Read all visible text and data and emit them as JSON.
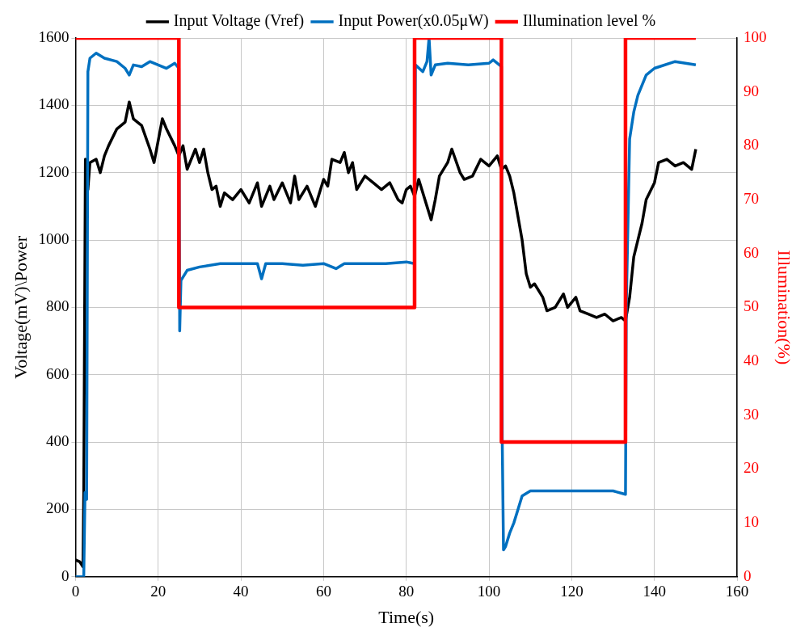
{
  "chart_data": {
    "type": "line",
    "xlabel": "Time(s)",
    "ylabel": "Voltage(mV)\\Power",
    "y2label": "Illumination(%)",
    "xlim": [
      0,
      160
    ],
    "xticks": [
      0,
      20,
      40,
      60,
      80,
      100,
      120,
      140,
      160
    ],
    "ylim": [
      0,
      1600
    ],
    "yticks": [
      0,
      200,
      400,
      600,
      800,
      1000,
      1200,
      1400,
      1600
    ],
    "y2lim": [
      0,
      100
    ],
    "y2ticks": [
      0,
      10,
      20,
      30,
      40,
      50,
      60,
      70,
      80,
      90,
      100
    ],
    "grid": true,
    "legend": "top",
    "marker": "none",
    "line_style": "solid",
    "series": [
      {
        "name": "Input Voltage (Vref)",
        "color": "#000000",
        "x": [
          0,
          1,
          1.8,
          2,
          2.4,
          3,
          3.5,
          5,
          6,
          7,
          8,
          10,
          12,
          13,
          14,
          16,
          18,
          19,
          21,
          22,
          24,
          25,
          26,
          27,
          29,
          30,
          31,
          32,
          33,
          34,
          35,
          36,
          38,
          40,
          42,
          44,
          45,
          47,
          48,
          50,
          52,
          53,
          54,
          56,
          58,
          60,
          61,
          62,
          64,
          65,
          66,
          67,
          68,
          70,
          72,
          74,
          76,
          78,
          79,
          80,
          81,
          82,
          83,
          85,
          86,
          87,
          88,
          90,
          91,
          93,
          94,
          96,
          98,
          100,
          102,
          103,
          104,
          105,
          106,
          108,
          109,
          110,
          111,
          113,
          114,
          116,
          118,
          119,
          121,
          122,
          124,
          126,
          128,
          130,
          132,
          133,
          134,
          135,
          137,
          138,
          140,
          141,
          143,
          145,
          147,
          149,
          150
        ],
        "values": [
          50,
          45,
          30,
          250,
          1240,
          1150,
          1230,
          1240,
          1200,
          1250,
          1280,
          1330,
          1350,
          1410,
          1360,
          1340,
          1270,
          1230,
          1360,
          1330,
          1280,
          1250,
          1280,
          1210,
          1270,
          1230,
          1270,
          1200,
          1150,
          1160,
          1100,
          1140,
          1120,
          1150,
          1110,
          1170,
          1100,
          1160,
          1120,
          1170,
          1110,
          1190,
          1120,
          1160,
          1100,
          1180,
          1160,
          1240,
          1230,
          1260,
          1200,
          1230,
          1150,
          1190,
          1170,
          1150,
          1170,
          1120,
          1110,
          1150,
          1160,
          1130,
          1180,
          1100,
          1060,
          1120,
          1190,
          1230,
          1270,
          1200,
          1180,
          1190,
          1240,
          1220,
          1250,
          1210,
          1220,
          1190,
          1140,
          1000,
          900,
          860,
          870,
          830,
          790,
          800,
          840,
          800,
          830,
          790,
          780,
          770,
          780,
          760,
          770,
          760,
          830,
          950,
          1050,
          1120,
          1170,
          1230,
          1240,
          1220,
          1230,
          1210,
          1270
        ]
      },
      {
        "name": "Input Power(x0.05μW)",
        "color": "#0070c0",
        "x": [
          0,
          2,
          2.3,
          2.7,
          3,
          3.5,
          5,
          7,
          10,
          12,
          13,
          14,
          16,
          18,
          20,
          22,
          24,
          25,
          25.2,
          25.5,
          27,
          30,
          35,
          40,
          44,
          45,
          46,
          50,
          55,
          60,
          63,
          65,
          70,
          75,
          80,
          82,
          82.2,
          84,
          85,
          85.5,
          86,
          87,
          90,
          95,
          100,
          101,
          103,
          103.2,
          103.5,
          104,
          105,
          106,
          107,
          108,
          110,
          115,
          120,
          125,
          130,
          133,
          133.2,
          134,
          135,
          136,
          138,
          140,
          145,
          150
        ],
        "values": [
          0,
          0,
          250,
          230,
          1500,
          1540,
          1555,
          1540,
          1530,
          1510,
          1490,
          1520,
          1515,
          1530,
          1520,
          1510,
          1525,
          1510,
          730,
          880,
          910,
          920,
          930,
          930,
          930,
          885,
          930,
          930,
          925,
          930,
          915,
          930,
          930,
          930,
          935,
          930,
          1520,
          1500,
          1530,
          1600,
          1490,
          1520,
          1525,
          1520,
          1525,
          1535,
          1515,
          400,
          80,
          90,
          130,
          160,
          200,
          240,
          255,
          255,
          255,
          255,
          255,
          245,
          810,
          1300,
          1380,
          1430,
          1490,
          1510,
          1530,
          1520
        ]
      },
      {
        "name": "Illumination level %",
        "color": "#ff0000",
        "axis": "y2",
        "x": [
          0,
          25,
          25,
          82,
          82,
          103,
          103,
          133,
          133,
          150
        ],
        "values": [
          100,
          100,
          50,
          50,
          100,
          100,
          25,
          25,
          100,
          100
        ]
      }
    ]
  }
}
